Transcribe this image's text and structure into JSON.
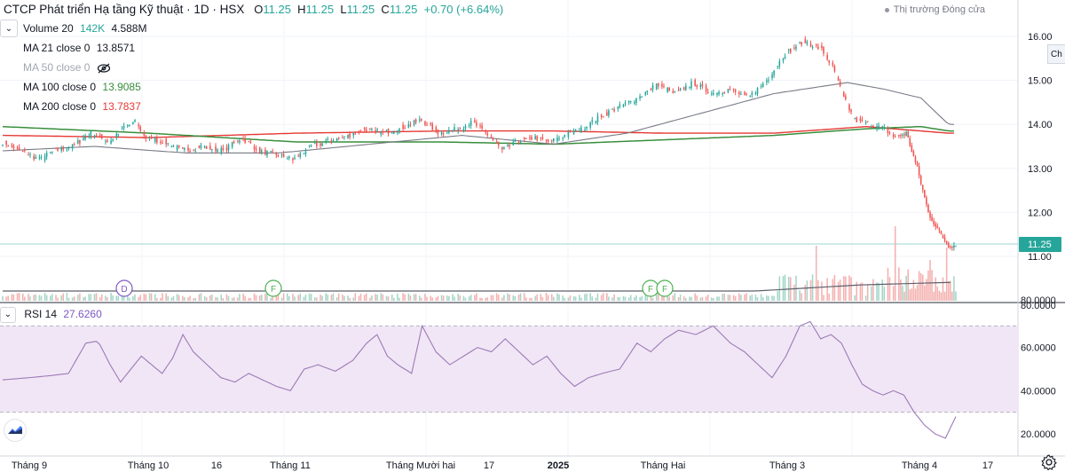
{
  "header": {
    "symbol_title": "CTCP Phát triển Hạ tầng Kỹ thuật · 1D · HSX",
    "open_label": "O",
    "open": "11.25",
    "high_label": "H",
    "high": "11.25",
    "low_label": "L",
    "low": "11.25",
    "close_label": "C",
    "close": "11.25",
    "change": "+0.70 (+6.64%)",
    "market_status": "Thị trường Đóng cửa",
    "side_chip": "Ch"
  },
  "indicators": {
    "volume": {
      "label": "Volume 20",
      "value1": "142K",
      "value2": "4.588M"
    },
    "ma21": {
      "label": "MA 21 close 0",
      "value": "13.8571"
    },
    "ma50": {
      "label": "MA 50 close 0",
      "value": ""
    },
    "ma100": {
      "label": "MA 100 close 0",
      "value": "13.9085"
    },
    "ma200": {
      "label": "MA 200 close 0",
      "value": "13.7837"
    }
  },
  "rsi": {
    "label": "RSI 14",
    "value": "27.6260"
  },
  "colors": {
    "up": "#26a69a",
    "down": "#ef5350",
    "up_volume": "#a5d6c8",
    "down_volume": "#f3b1b0",
    "ma21": "#787b86",
    "ma100": "#388e3c",
    "ma200": "#e53935",
    "rsi_line": "#9c7ab8",
    "rsi_band": "#f1e6f5",
    "price_tag": "#26a69a"
  },
  "icons": {
    "collapse": "chevron-down-icon",
    "hidden": "eye-off-icon",
    "logo": "tradingview-logo-icon",
    "settings": "gear-icon"
  },
  "chart_data": {
    "type": "candlestick",
    "price_axis": {
      "ticks": [
        "16.00",
        "15.00",
        "14.00",
        "13.00",
        "12.00",
        "11.00"
      ],
      "range": [
        10.95,
        16.5
      ],
      "current": "11.25"
    },
    "volume_axis": {
      "ticks": [
        "80.0000"
      ]
    },
    "rsi_axis": {
      "ticks": [
        "80.0000",
        "60.0000",
        "40.0000",
        "20.0000"
      ],
      "range": [
        15,
        80
      ],
      "band": [
        30,
        70
      ]
    },
    "x_axis": {
      "labels": [
        "Tháng 9",
        "Tháng 10",
        "16",
        "Tháng 11",
        "Tháng Mười hai",
        "17",
        "2025",
        "Tháng Hai",
        "Tháng 3",
        "Tháng 4",
        "17"
      ]
    },
    "events": [
      "D",
      "F",
      "F",
      "F"
    ],
    "price_anchors": [
      [
        0,
        13.6
      ],
      [
        10,
        13.4
      ],
      [
        20,
        13.2
      ],
      [
        28,
        13.4
      ],
      [
        38,
        13.5
      ],
      [
        48,
        13.8
      ],
      [
        58,
        13.6
      ],
      [
        65,
        13.9
      ],
      [
        72,
        14.05
      ],
      [
        78,
        13.7
      ],
      [
        88,
        13.6
      ],
      [
        98,
        13.4
      ],
      [
        108,
        13.5
      ],
      [
        120,
        13.4
      ],
      [
        130,
        13.7
      ],
      [
        140,
        13.4
      ],
      [
        150,
        13.3
      ],
      [
        158,
        13.2
      ],
      [
        168,
        13.5
      ],
      [
        176,
        13.6
      ],
      [
        186,
        13.7
      ],
      [
        196,
        13.9
      ],
      [
        206,
        13.8
      ],
      [
        216,
        13.9
      ],
      [
        228,
        14.1
      ],
      [
        238,
        13.8
      ],
      [
        248,
        13.9
      ],
      [
        256,
        14.05
      ],
      [
        266,
        13.7
      ],
      [
        272,
        13.4
      ],
      [
        280,
        13.6
      ],
      [
        290,
        13.7
      ],
      [
        298,
        13.6
      ],
      [
        306,
        13.75
      ],
      [
        316,
        13.9
      ],
      [
        326,
        14.2
      ],
      [
        336,
        14.4
      ],
      [
        346,
        14.6
      ],
      [
        356,
        14.9
      ],
      [
        366,
        14.7
      ],
      [
        376,
        14.95
      ],
      [
        386,
        14.7
      ],
      [
        396,
        14.8
      ],
      [
        406,
        14.6
      ],
      [
        416,
        15.0
      ],
      [
        426,
        15.6
      ],
      [
        436,
        15.9
      ],
      [
        446,
        15.7
      ],
      [
        452,
        15.3
      ],
      [
        458,
        14.6
      ],
      [
        464,
        14.1
      ],
      [
        472,
        14.0
      ],
      [
        480,
        13.9
      ],
      [
        486,
        13.7
      ],
      [
        492,
        13.8
      ],
      [
        498,
        13.0
      ],
      [
        504,
        12.0
      ],
      [
        510,
        11.55
      ],
      [
        515,
        11.25
      ]
    ],
    "ma21_anchors": [
      [
        0,
        13.4
      ],
      [
        50,
        13.5
      ],
      [
        100,
        13.35
      ],
      [
        150,
        13.35
      ],
      [
        200,
        13.55
      ],
      [
        250,
        13.75
      ],
      [
        300,
        13.55
      ],
      [
        340,
        13.8
      ],
      [
        380,
        14.25
      ],
      [
        420,
        14.7
      ],
      [
        460,
        14.95
      ],
      [
        480,
        14.8
      ],
      [
        500,
        14.6
      ],
      [
        515,
        14.0
      ]
    ],
    "ma100_anchors": [
      [
        0,
        13.95
      ],
      [
        80,
        13.8
      ],
      [
        160,
        13.6
      ],
      [
        240,
        13.6
      ],
      [
        300,
        13.55
      ],
      [
        360,
        13.65
      ],
      [
        420,
        13.75
      ],
      [
        470,
        13.9
      ],
      [
        500,
        13.95
      ],
      [
        515,
        13.85
      ]
    ],
    "ma200_anchors": [
      [
        0,
        13.75
      ],
      [
        80,
        13.7
      ],
      [
        160,
        13.8
      ],
      [
        240,
        13.85
      ],
      [
        300,
        13.85
      ],
      [
        360,
        13.8
      ],
      [
        420,
        13.8
      ],
      [
        470,
        13.95
      ],
      [
        500,
        13.85
      ],
      [
        515,
        13.8
      ]
    ],
    "rsi_anchors": [
      [
        0,
        45
      ],
      [
        15,
        46
      ],
      [
        28,
        47
      ],
      [
        38,
        48
      ],
      [
        48,
        62
      ],
      [
        55,
        63
      ],
      [
        62,
        52
      ],
      [
        68,
        44
      ],
      [
        74,
        50
      ],
      [
        80,
        56
      ],
      [
        86,
        52
      ],
      [
        92,
        48
      ],
      [
        98,
        55
      ],
      [
        104,
        66
      ],
      [
        110,
        58
      ],
      [
        118,
        52
      ],
      [
        126,
        46
      ],
      [
        134,
        44
      ],
      [
        142,
        48
      ],
      [
        150,
        45
      ],
      [
        158,
        42
      ],
      [
        166,
        40
      ],
      [
        174,
        50
      ],
      [
        182,
        52
      ],
      [
        192,
        49
      ],
      [
        202,
        54
      ],
      [
        210,
        62
      ],
      [
        216,
        66
      ],
      [
        222,
        56
      ],
      [
        228,
        52
      ],
      [
        236,
        48
      ],
      [
        242,
        70
      ],
      [
        250,
        58
      ],
      [
        258,
        52
      ],
      [
        266,
        56
      ],
      [
        274,
        60
      ],
      [
        282,
        58
      ],
      [
        290,
        64
      ],
      [
        298,
        58
      ],
      [
        306,
        52
      ],
      [
        314,
        56
      ],
      [
        322,
        48
      ],
      [
        330,
        42
      ],
      [
        338,
        46
      ],
      [
        346,
        48
      ],
      [
        356,
        50
      ],
      [
        366,
        62
      ],
      [
        374,
        58
      ],
      [
        382,
        64
      ],
      [
        390,
        68
      ],
      [
        400,
        66
      ],
      [
        410,
        70
      ],
      [
        420,
        62
      ],
      [
        428,
        58
      ],
      [
        436,
        52
      ],
      [
        444,
        46
      ],
      [
        452,
        56
      ],
      [
        460,
        70
      ],
      [
        466,
        72
      ],
      [
        472,
        64
      ],
      [
        478,
        66
      ],
      [
        484,
        62
      ],
      [
        490,
        52
      ],
      [
        496,
        43
      ],
      [
        502,
        40
      ],
      [
        508,
        38
      ],
      [
        514,
        40
      ],
      [
        520,
        38
      ],
      [
        526,
        30
      ],
      [
        532,
        24
      ],
      [
        538,
        20
      ],
      [
        544,
        18
      ],
      [
        550,
        28
      ]
    ],
    "volume_base": 5
  }
}
